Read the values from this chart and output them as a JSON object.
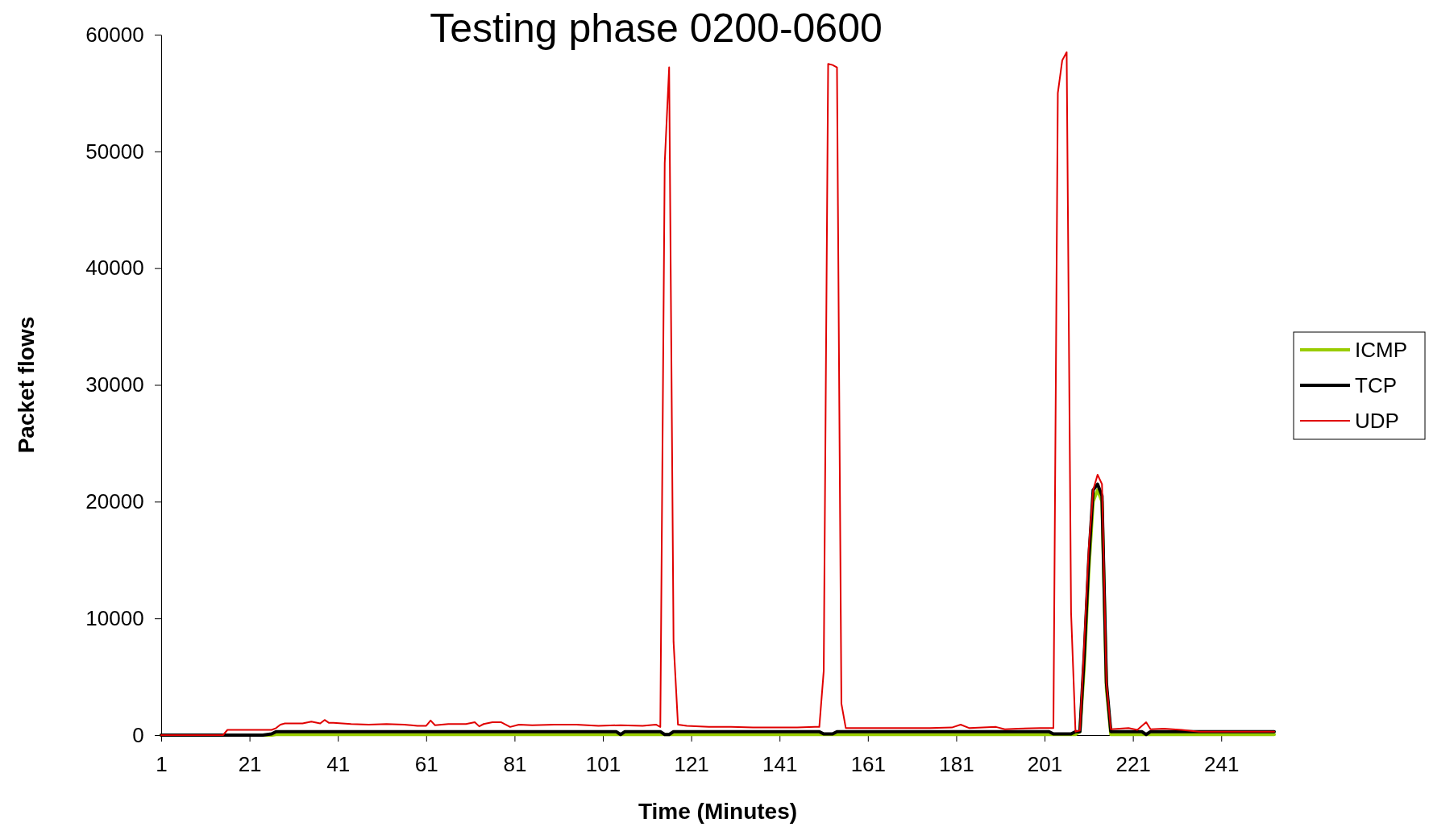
{
  "chart_data": {
    "type": "line",
    "title": "Testing phase 0200-0600",
    "xlabel": "Time (Minutes)",
    "ylabel": "Packet flows",
    "xlim": [
      1,
      253
    ],
    "xticks": [
      1,
      21,
      41,
      61,
      81,
      101,
      121,
      141,
      161,
      181,
      201,
      221,
      241
    ],
    "ylim": [
      0,
      60000
    ],
    "yticks": [
      0,
      10000,
      20000,
      30000,
      40000,
      50000,
      60000
    ],
    "legend": "right",
    "marker": "none",
    "line_style": "solid",
    "grid": false,
    "series": [
      {
        "name": "ICMP",
        "color": "#99cc00",
        "x": [
          1,
          26,
          27,
          208,
          209,
          210,
          211,
          212,
          213,
          214,
          215,
          216,
          253
        ],
        "values": [
          0,
          0,
          50,
          50,
          300,
          6000,
          14000,
          20000,
          21000,
          20000,
          4000,
          50,
          50
        ]
      },
      {
        "name": "TCP",
        "color": "#000000",
        "x": [
          1,
          24,
          26,
          27,
          104,
          105,
          106,
          114,
          115,
          116,
          117,
          150,
          151,
          153,
          154,
          202,
          203,
          207,
          208,
          209,
          210,
          211,
          212,
          213,
          214,
          215,
          216,
          223,
          224,
          225,
          253
        ],
        "values": [
          0,
          0,
          100,
          300,
          300,
          50,
          300,
          300,
          50,
          50,
          300,
          300,
          100,
          100,
          300,
          300,
          100,
          100,
          300,
          300,
          7000,
          15000,
          21000,
          21500,
          20500,
          4500,
          300,
          300,
          50,
          300,
          300
        ]
      },
      {
        "name": "UDP",
        "color": "#e00000",
        "x": [
          1,
          15,
          16,
          26,
          27,
          28,
          29,
          33,
          35,
          37,
          38,
          39,
          40,
          44,
          48,
          52,
          56,
          59,
          61,
          62,
          63,
          66,
          70,
          72,
          73,
          74,
          76,
          78,
          80,
          82,
          85,
          90,
          95,
          100,
          105,
          110,
          113,
          114,
          115,
          116,
          117,
          118,
          120,
          125,
          130,
          135,
          140,
          145,
          149,
          150,
          151,
          152,
          153,
          154,
          155,
          156,
          165,
          175,
          180,
          182,
          184,
          190,
          192,
          195,
          200,
          203,
          204,
          205,
          206,
          207,
          208,
          209,
          210,
          211,
          212,
          213,
          214,
          215,
          216,
          220,
          222,
          224,
          225,
          228,
          232,
          236,
          253
        ],
        "values": [
          0,
          0,
          450,
          450,
          600,
          900,
          1000,
          1000,
          1150,
          1000,
          1300,
          1050,
          1050,
          950,
          900,
          950,
          900,
          800,
          800,
          1250,
          850,
          950,
          950,
          1100,
          750,
          950,
          1100,
          1100,
          700,
          900,
          850,
          900,
          900,
          800,
          850,
          800,
          900,
          700,
          49000,
          57200,
          8000,
          900,
          800,
          700,
          700,
          650,
          650,
          650,
          700,
          700,
          5500,
          57500,
          57400,
          57200,
          2700,
          600,
          600,
          600,
          650,
          900,
          600,
          700,
          500,
          550,
          600,
          600,
          55000,
          57800,
          58500,
          10500,
          300,
          400,
          8000,
          16000,
          21000,
          22300,
          21500,
          4500,
          500,
          600,
          450,
          1100,
          500,
          550,
          450,
          300,
          300
        ]
      }
    ]
  }
}
